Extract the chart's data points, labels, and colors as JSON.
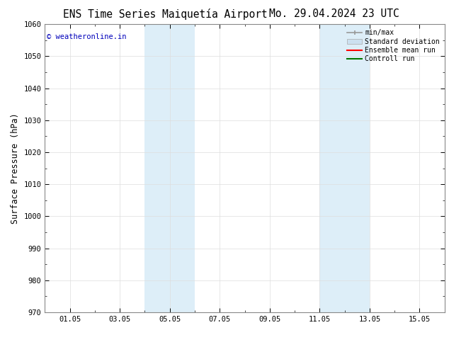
{
  "title_left": "ENS Time Series Maiquetía Airport",
  "title_right": "Mo. 29.04.2024 23 UTC",
  "ylabel": "Surface Pressure (hPa)",
  "ylim": [
    970,
    1060
  ],
  "yticks": [
    970,
    980,
    990,
    1000,
    1010,
    1020,
    1030,
    1040,
    1050,
    1060
  ],
  "xtick_labels": [
    "01.05",
    "03.05",
    "05.05",
    "07.05",
    "09.05",
    "11.05",
    "13.05",
    "15.05"
  ],
  "xtick_positions": [
    1,
    3,
    5,
    7,
    9,
    11,
    13,
    15
  ],
  "shaded_regions": [
    {
      "start": 4,
      "end": 6,
      "color": "#ddeef8"
    },
    {
      "start": 11,
      "end": 13,
      "color": "#ddeef8"
    }
  ],
  "xlim": [
    0,
    16
  ],
  "watermark_text": "© weatheronline.in",
  "watermark_color": "#0000bb",
  "legend_items": [
    {
      "label": "min/max",
      "color": "#aaaaaa",
      "style": "line_with_caps"
    },
    {
      "label": "Standard deviation",
      "color": "#cce0f0",
      "style": "filled_box"
    },
    {
      "label": "Ensemble mean run",
      "color": "#ff0000",
      "style": "line"
    },
    {
      "label": "Controll run",
      "color": "#007700",
      "style": "line"
    }
  ],
  "bg_color": "#ffffff",
  "plot_bg_color": "#ffffff",
  "grid_color": "#dddddd",
  "tick_label_fontsize": 7.5,
  "axis_label_fontsize": 8.5,
  "title_fontsize": 10.5,
  "minor_xtick_positions": [
    2,
    4,
    6,
    8,
    10,
    12,
    14
  ]
}
